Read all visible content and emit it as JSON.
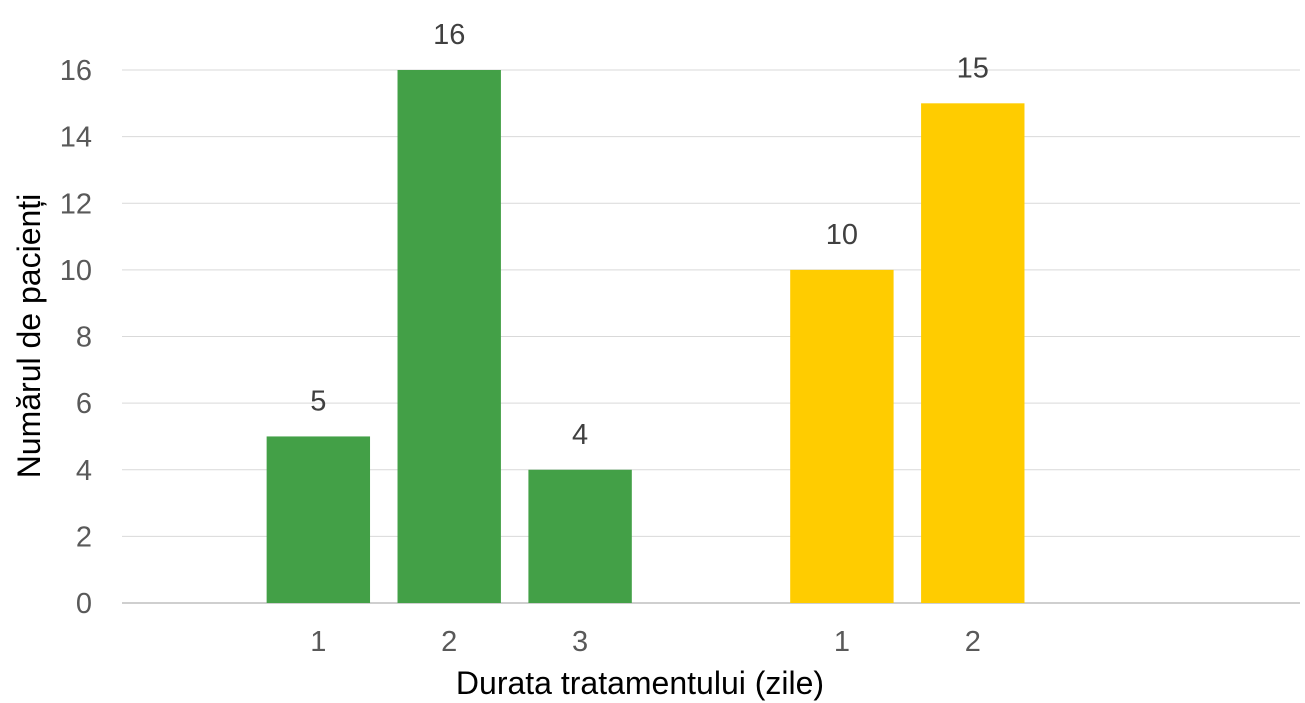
{
  "chart_data": {
    "type": "bar",
    "ylabel": "Numărul de pacienți",
    "xlabel": "Durata tratamentului (zile)",
    "ylim": [
      0,
      16
    ],
    "yticks": [
      0,
      2,
      4,
      6,
      8,
      10,
      12,
      14,
      16
    ],
    "grid": true,
    "legend": "none",
    "groups": [
      {
        "color": "#43a047",
        "categories": [
          "1",
          "2",
          "3"
        ],
        "values": [
          5,
          16,
          4
        ]
      },
      {
        "color": "#ffcc00",
        "categories": [
          "1",
          "2"
        ],
        "values": [
          10,
          15
        ]
      }
    ]
  }
}
